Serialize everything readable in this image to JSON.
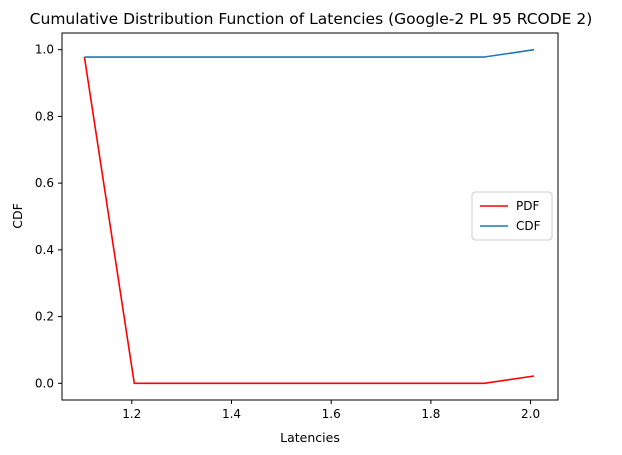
{
  "chart_data": {
    "type": "line",
    "title": "Cumulative Distribution Function of Latencies (Google-2 PL 95 RCODE 2)",
    "xlabel": "Latencies",
    "ylabel": "CDF",
    "xlim": [
      1.06,
      2.055
    ],
    "ylim": [
      -0.05,
      1.05
    ],
    "xticks": [
      1.2,
      1.4,
      1.6,
      1.8,
      2.0
    ],
    "xtick_labels": [
      "1.2",
      "1.4",
      "1.6",
      "1.8",
      "2.0"
    ],
    "yticks": [
      0.0,
      0.2,
      0.4,
      0.6,
      0.8,
      1.0
    ],
    "ytick_labels": [
      "0.0",
      "0.2",
      "0.4",
      "0.6",
      "0.8",
      "1.0"
    ],
    "grid": false,
    "legend_position": "center-right",
    "series": [
      {
        "name": "PDF",
        "color": "#ff0000",
        "x": [
          1.105,
          1.205,
          1.907,
          2.007
        ],
        "y": [
          0.978,
          0.0,
          0.0,
          0.022
        ]
      },
      {
        "name": "CDF",
        "color": "#1f77b4",
        "x": [
          1.105,
          1.205,
          1.907,
          2.007
        ],
        "y": [
          0.978,
          0.978,
          0.978,
          1.0
        ]
      }
    ]
  }
}
